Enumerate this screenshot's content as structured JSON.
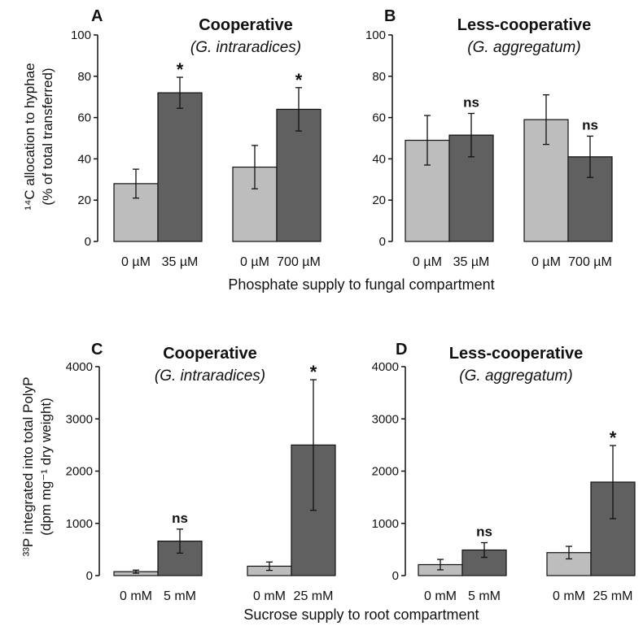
{
  "colors": {
    "control": "#bdbdbd",
    "treatment": "#606060",
    "axis": "#111111"
  },
  "row_labels": {
    "top": "Phosphate supply to fungal compartment",
    "bottom": "Sucrose supply to root compartment"
  },
  "chart_data": [
    {
      "type": "bar",
      "panel": "A",
      "title": "Cooperative",
      "subtitle": "(G. intraradices)",
      "ylabel_line1": "¹⁴C allocation to hyphae",
      "ylabel_line2": "(% of total transferred)",
      "ylim": [
        0,
        100
      ],
      "yticks": [
        0,
        20,
        40,
        60,
        80,
        100
      ],
      "categories": [
        "0 µM",
        "35 µM",
        "0 µM",
        "700 µM"
      ],
      "values": [
        28,
        72,
        36,
        64
      ],
      "errors": [
        7,
        7.5,
        10.5,
        10.5
      ],
      "significance": [
        "",
        "*",
        "",
        "*"
      ],
      "shade": [
        "control",
        "treatment",
        "control",
        "treatment"
      ]
    },
    {
      "type": "bar",
      "panel": "B",
      "title": "Less-cooperative",
      "subtitle": "(G. aggregatum)",
      "ylim": [
        0,
        100
      ],
      "yticks": [
        0,
        20,
        40,
        60,
        80,
        100
      ],
      "categories": [
        "0 µM",
        "35 µM",
        "0 µM",
        "700 µM"
      ],
      "values": [
        49,
        51.5,
        59,
        41
      ],
      "errors": [
        12,
        10.5,
        12,
        10
      ],
      "significance": [
        "",
        "ns",
        "",
        "ns"
      ],
      "shade": [
        "control",
        "treatment",
        "control",
        "treatment"
      ]
    },
    {
      "type": "bar",
      "panel": "C",
      "title": "Cooperative",
      "subtitle": "(G. intraradices)",
      "ylabel_line1": "³³P integrated into total PolyP",
      "ylabel_line2": "(dpm mg⁻¹ dry weight)",
      "ylim": [
        0,
        4000
      ],
      "yticks": [
        0,
        1000,
        2000,
        3000,
        4000
      ],
      "categories": [
        "0 mM",
        "5 mM",
        "0 mM",
        "25 mM"
      ],
      "values": [
        75,
        660,
        180,
        2500
      ],
      "errors": [
        30,
        230,
        80,
        1250
      ],
      "significance": [
        "",
        "ns",
        "",
        "*"
      ],
      "shade": [
        "control",
        "treatment",
        "control",
        "treatment"
      ]
    },
    {
      "type": "bar",
      "panel": "D",
      "title": "Less-cooperative",
      "subtitle": "(G. aggregatum)",
      "ylim": [
        0,
        4000
      ],
      "yticks": [
        0,
        1000,
        2000,
        3000,
        4000
      ],
      "categories": [
        "0 mM",
        "5 mM",
        "0 mM",
        "25 mM"
      ],
      "values": [
        210,
        490,
        440,
        1790
      ],
      "errors": [
        100,
        140,
        120,
        700
      ],
      "significance": [
        "",
        "ns",
        "",
        "*"
      ],
      "shade": [
        "control",
        "treatment",
        "control",
        "treatment"
      ]
    }
  ]
}
